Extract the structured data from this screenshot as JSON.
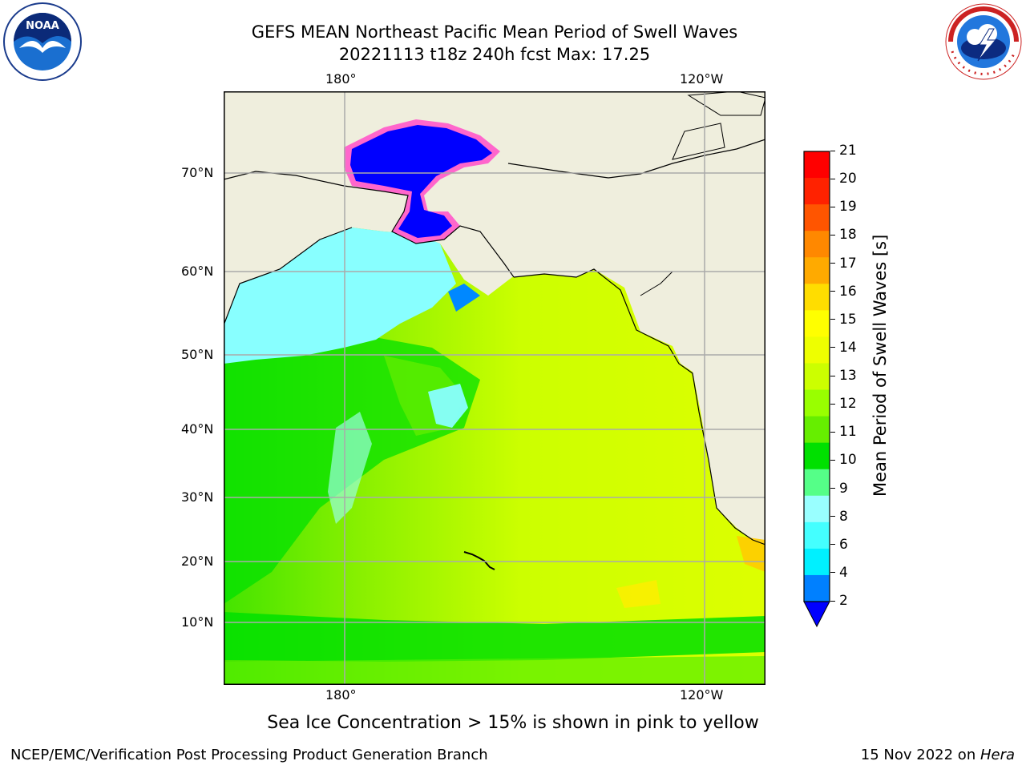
{
  "title_line1": "GEFS MEAN Northeast Pacific Mean Period of Swell Waves",
  "title_line2": "20221113 t18z 240h fcst   Max: 17.25",
  "map": {
    "lon_ticks": [
      "180°",
      "120°W"
    ],
    "lat_ticks": [
      "70°N",
      "60°N",
      "50°N",
      "40°N",
      "30°N",
      "20°N",
      "10°N"
    ]
  },
  "colorbar": {
    "label": "Mean Period of Swell Waves [s]",
    "ticks": [
      "21",
      "20",
      "19",
      "18",
      "17",
      "16",
      "15",
      "14",
      "13",
      "12",
      "11",
      "10",
      "9",
      "8",
      "6",
      "4",
      "2"
    ],
    "colors": [
      "#ff0000",
      "#ff2200",
      "#ff5500",
      "#ff8800",
      "#ffaa00",
      "#ffdd00",
      "#ffff00",
      "#eeff00",
      "#ccff00",
      "#99ff00",
      "#66ee00",
      "#00e000",
      "#55ff88",
      "#99ffff",
      "#44ffff",
      "#00f0ff",
      "#0080ff"
    ],
    "under_color": "#0000ff"
  },
  "colors": {
    "land": "#efeedd",
    "ice": "#0000ff",
    "ice_edge": "#ff66cc"
  },
  "sea_ice_note": "Sea Ice Concentration > 15% is shown in pink to yellow",
  "footer_left": "NCEP/EMC/Verification Post Processing Product Generation Branch",
  "footer_right_date": "15 Nov 2022 on ",
  "footer_right_machine": "Hera",
  "logos": {
    "noaa_text": "NOAA",
    "nws_text": "NATIONAL WEATHER SERVICE"
  }
}
